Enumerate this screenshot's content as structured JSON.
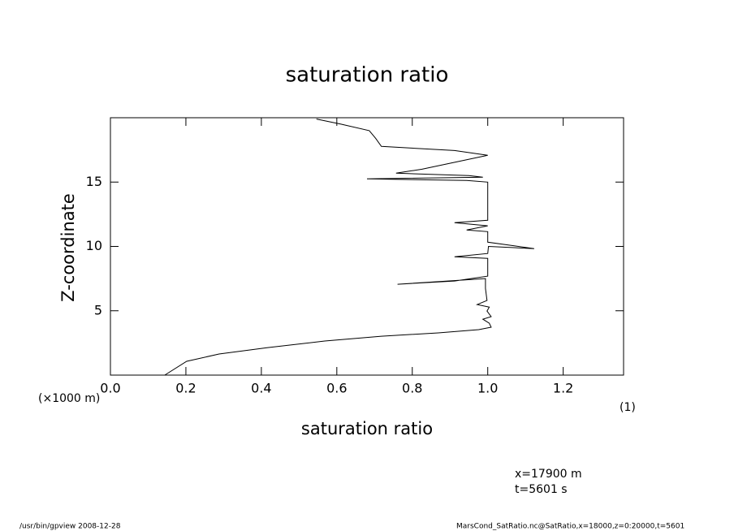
{
  "chart_data": {
    "type": "line",
    "title": "saturation ratio",
    "x_label": "saturation ratio",
    "y_label": "Z-coordinate",
    "y_unit": "(×1000 m)",
    "x_unit": "(1)",
    "annotations": [
      "x=17900 m",
      "t=5601 s"
    ],
    "footer_left": "/usr/bin/gpview   2008-12-28",
    "footer_right": "MarsCond_SatRatio.nc@SatRatio,x=18000,z=0:20000,t=5601",
    "color": "#000000",
    "x": [
      0.144,
      0.202,
      0.288,
      0.417,
      0.568,
      0.718,
      0.869,
      0.976,
      1.009,
      1.004,
      0.987,
      1.009,
      0.998,
      1.004,
      0.972,
      0.998,
      0.994,
      0.994,
      0.761,
      0.912,
      1.0,
      1.0,
      0.912,
      1.0,
      1.002,
      1.123,
      1.0,
      1.0,
      0.944,
      1.0,
      0.912,
      1.0,
      1.0,
      0.944,
      0.68,
      0.987,
      0.95,
      0.757,
      0.826,
      1.0,
      0.912,
      0.718,
      0.703,
      0.686,
      0.611,
      0.546
    ],
    "values": [
      0,
      1.07,
      1.64,
      2.14,
      2.65,
      3.02,
      3.28,
      3.53,
      3.72,
      4.03,
      4.35,
      4.54,
      4.98,
      5.29,
      5.48,
      5.8,
      6.74,
      7.5,
      7.06,
      7.31,
      7.69,
      9.07,
      9.2,
      9.45,
      10.0,
      9.83,
      10.33,
      11.15,
      11.28,
      11.6,
      11.85,
      12.03,
      15.0,
      15.12,
      15.25,
      15.38,
      15.5,
      15.69,
      16.0,
      17.08,
      17.45,
      17.77,
      18.4,
      19.0,
      19.5,
      19.9
    ],
    "xlim": [
      0,
      1.36
    ],
    "ylim": [
      0,
      20
    ],
    "xticks": [
      {
        "value": 0,
        "label": "0.0"
      },
      0.2,
      0.4,
      0.6,
      0.8,
      {
        "value": 1,
        "label": "1.0"
      },
      1.2
    ],
    "yticks": [
      5,
      10,
      15
    ]
  }
}
